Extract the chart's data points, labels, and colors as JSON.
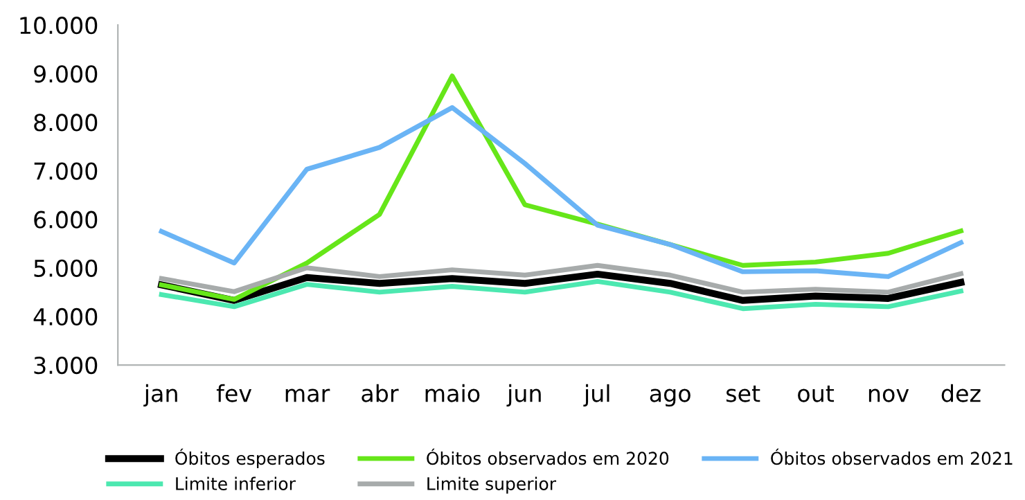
{
  "chart_data": {
    "type": "line",
    "categories": [
      "jan",
      "fev",
      "mar",
      "abr",
      "maio",
      "jun",
      "jul",
      "ago",
      "set",
      "out",
      "nov",
      "dez"
    ],
    "ylim": [
      3000,
      10000
    ],
    "yticks": [
      {
        "value": 3000,
        "label": "3.000"
      },
      {
        "value": 4000,
        "label": "4.000"
      },
      {
        "value": 5000,
        "label": "5.000"
      },
      {
        "value": 6000,
        "label": "6.000"
      },
      {
        "value": 7000,
        "label": "7.000"
      },
      {
        "value": 8000,
        "label": "8.000"
      },
      {
        "value": 9000,
        "label": "9.000"
      },
      {
        "value": 10000,
        "label": "10.000"
      }
    ],
    "grid": false,
    "legend": "bottom",
    "marker": "none",
    "line_style": "solid",
    "series": [
      {
        "name": "Óbitos esperados",
        "color": "#000000",
        "values": [
          4650,
          4330,
          4800,
          4680,
          4780,
          4680,
          4870,
          4680,
          4330,
          4420,
          4370,
          4700
        ]
      },
      {
        "name": "Óbitos observados em 2020",
        "color": "#66e619",
        "values": [
          4650,
          4350,
          5100,
          6100,
          8950,
          6300,
          5900,
          5480,
          5050,
          5120,
          5300,
          5760
        ]
      },
      {
        "name": "Óbitos observados em 2021",
        "color": "#6ab4f5",
        "values": [
          5750,
          5100,
          7030,
          7480,
          8300,
          7150,
          5880,
          5480,
          4920,
          4940,
          4820,
          5520
        ]
      },
      {
        "name": "Limite inferior",
        "color": "#4ce8b0",
        "values": [
          4450,
          4200,
          4660,
          4500,
          4620,
          4500,
          4720,
          4500,
          4160,
          4250,
          4200,
          4520
        ]
      },
      {
        "name": "Limite superior",
        "color": "#a7abab",
        "values": [
          4780,
          4510,
          5000,
          4820,
          4960,
          4850,
          5050,
          4850,
          4500,
          4560,
          4500,
          4880
        ]
      }
    ]
  }
}
